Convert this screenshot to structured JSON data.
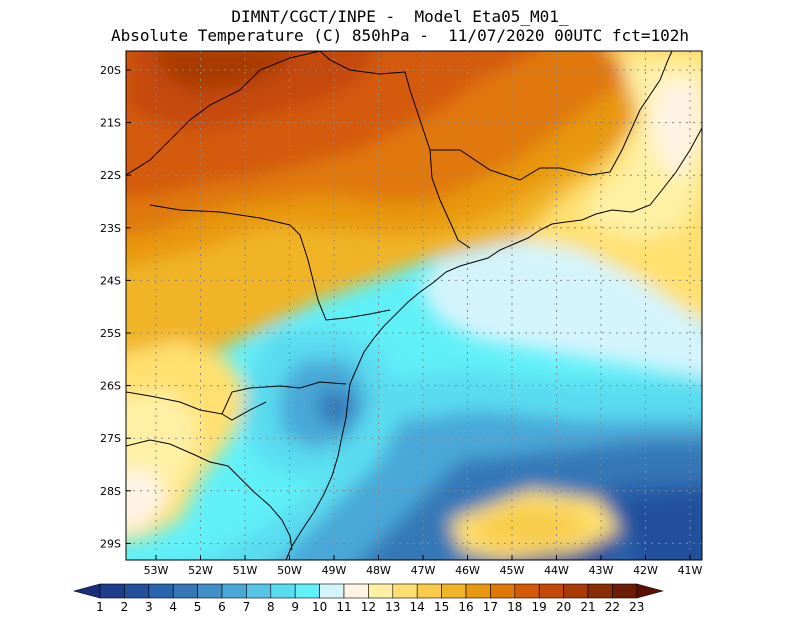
{
  "header": {
    "line1": "DIMNT/CGCT/INPE -  Model Eta05_M01_",
    "line2": "Absolute Temperature (C) 850hPa -  11/07/2020 00UTC fct=102h"
  },
  "map": {
    "lat_labels": [
      "20S",
      "21S",
      "22S",
      "23S",
      "24S",
      "25S",
      "26S",
      "27S",
      "28S",
      "29S"
    ],
    "lon_labels": [
      "53W",
      "52W",
      "51W",
      "50W",
      "49W",
      "48W",
      "47W",
      "46W",
      "45W",
      "44W",
      "43W",
      "42W",
      "41W"
    ],
    "grid": "dotted"
  },
  "colorbar": {
    "labels": [
      "1",
      "2",
      "3",
      "4",
      "5",
      "6",
      "7",
      "8",
      "9",
      "10",
      "11",
      "12",
      "13",
      "14",
      "15",
      "16",
      "17",
      "18",
      "19",
      "20",
      "21",
      "22",
      "23"
    ],
    "colors": [
      "#1e3c8c",
      "#24509c",
      "#2a64ac",
      "#3478b8",
      "#4090c8",
      "#4aa8d8",
      "#58c4e8",
      "#5adcf0",
      "#60f0f8",
      "#d4f4fc",
      "#fff4e4",
      "#fff0a4",
      "#ffe070",
      "#f8cc48",
      "#f0b428",
      "#e89810",
      "#e07808",
      "#d45a08",
      "#c44808",
      "#a83a06",
      "#882c06",
      "#6c1c04"
    ],
    "end_low": "#1a2e80",
    "end_high": "#5c1002"
  }
}
